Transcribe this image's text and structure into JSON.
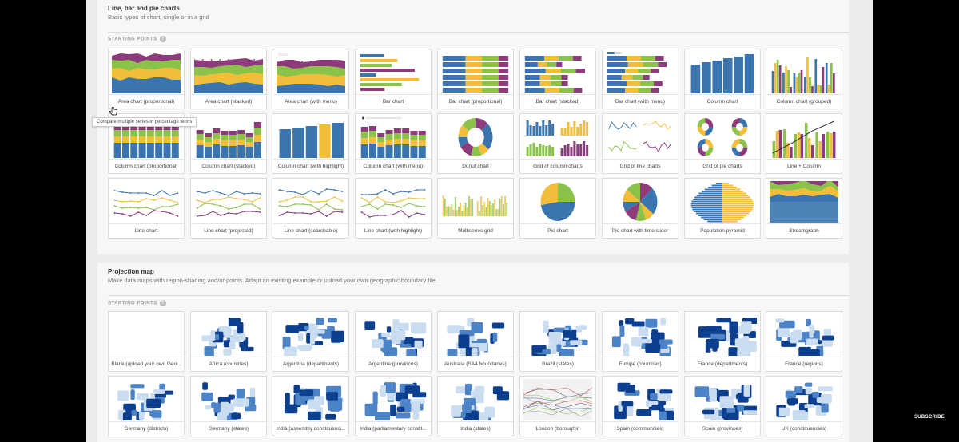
{
  "sections": {
    "charts": {
      "title": "Line, bar and pie charts",
      "description": "Basic types of chart, single or in a grid",
      "starting_points": "STARTING POINTS",
      "help": "?"
    },
    "maps": {
      "title": "Projection map",
      "description": "Make data maps with region-shading and/or points. Adapt an existing example or upload your own geographic boundary file.",
      "starting_points": "STARTING POINTS",
      "help": "?"
    }
  },
  "chart_cards": [
    {
      "label": "Area chart (proportional)",
      "thumb": "area-prop"
    },
    {
      "label": "Area chart (stacked)",
      "thumb": "area-stack"
    },
    {
      "label": "Area chart (with menu)",
      "thumb": "area-menu"
    },
    {
      "label": "Bar chart",
      "thumb": "bar"
    },
    {
      "label": "Bar chart (proportional)",
      "thumb": "bar-prop"
    },
    {
      "label": "Bar chart (stacked)",
      "thumb": "bar-stack"
    },
    {
      "label": "Bar chart (with menu)",
      "thumb": "bar-menu"
    },
    {
      "label": "Column chart",
      "thumb": "col"
    },
    {
      "label": "Column chart (grouped)",
      "thumb": "col-group"
    },
    {
      "label": "Column chart (proportional)",
      "thumb": "col-prop"
    },
    {
      "label": "Column chart (stacked)",
      "thumb": "col-stack"
    },
    {
      "label": "Column chart (with highlight)",
      "thumb": "col-high"
    },
    {
      "label": "Column chart (with menu)",
      "thumb": "col-menu"
    },
    {
      "label": "Donut chart",
      "thumb": "donut"
    },
    {
      "label": "Grid of column charts",
      "thumb": "grid-col"
    },
    {
      "label": "Grid of line charts",
      "thumb": "grid-line"
    },
    {
      "label": "Grid of pie charts",
      "thumb": "grid-pie"
    },
    {
      "label": "Line + Column",
      "thumb": "line-col"
    },
    {
      "label": "Line chart",
      "thumb": "line"
    },
    {
      "label": "Line chart (projected)",
      "thumb": "line"
    },
    {
      "label": "Line chart (searchable)",
      "thumb": "line"
    },
    {
      "label": "Line chart (with highlight)",
      "thumb": "line"
    },
    {
      "label": "Multiseries grid",
      "thumb": "multi"
    },
    {
      "label": "Pie chart",
      "thumb": "pie"
    },
    {
      "label": "Pie chart with time slider",
      "thumb": "pie"
    },
    {
      "label": "Population pyramid",
      "thumb": "pyramid"
    },
    {
      "label": "Streamgraph",
      "thumb": "stream"
    }
  ],
  "map_cards": [
    {
      "label": "Blank (upload your own Geo..."
    },
    {
      "label": "Africa (countries)"
    },
    {
      "label": "Argentina (departments)"
    },
    {
      "label": "Argentina (provinces)"
    },
    {
      "label": "Australia (SA4 boundaries)"
    },
    {
      "label": "Brazil (states)"
    },
    {
      "label": "Europe (countries)"
    },
    {
      "label": "France (departments)"
    },
    {
      "label": "France (regions)"
    },
    {
      "label": "Germany (districts)"
    },
    {
      "label": "Germany (states)"
    },
    {
      "label": "India (assembly constituenci..."
    },
    {
      "label": "India (parliamentary constit..."
    },
    {
      "label": "India (states)"
    },
    {
      "label": "London (boroughs)"
    },
    {
      "label": "Spain (communities)"
    },
    {
      "label": "Spain (provinces)"
    },
    {
      "label": "UK (constituencies)"
    }
  ],
  "tooltip": "Compare multiple series in percentage terms",
  "overlay": {
    "subscribe": "SUBSCRIBE"
  },
  "colors": {
    "blue": "#3b75af",
    "yellow": "#f2be3a",
    "green": "#8bc34a",
    "purple": "#8e3b7e",
    "mapdark": "#0d3f8f",
    "maplight": "#c9dcf0"
  }
}
